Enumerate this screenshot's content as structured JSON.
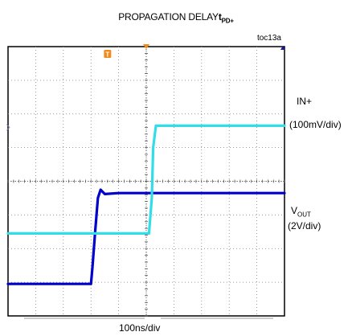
{
  "title": {
    "main": "PROPAGATION DELAY",
    "symbol": "t",
    "subscript": "PD+"
  },
  "figure_id": "toc13a",
  "labels": {
    "in_plus": {
      "name": "IN+",
      "scale": "(100mV/div)"
    },
    "vout": {
      "name": "V",
      "subscript": "OUT",
      "scale": "(2V/div)"
    },
    "time_base": "100ns/div"
  },
  "colors": {
    "background": "#ffffff",
    "grid": "#808080",
    "in_plus_trace": "#0000cc",
    "vout_trace": "#33dde8",
    "trigger_marker": "#f08a1c",
    "ground_marker": "#1a1a9a"
  },
  "chart_data": {
    "type": "line",
    "x_divisions": 10,
    "y_divisions": 8,
    "x": [
      0,
      1.5,
      3.0,
      3.05,
      3.15,
      3.25,
      3.35,
      3.5,
      4.0,
      5.0,
      10.0
    ],
    "series": [
      {
        "name": "IN+",
        "screen": "upper",
        "values": [
          0.95,
          0.95,
          0.95,
          1.4,
          2.5,
          3.5,
          3.75,
          3.62,
          3.65,
          3.65,
          3.65
        ]
      },
      {
        "name": "VOUT",
        "x": [
          0,
          2.5,
          5.1,
          5.2,
          5.25,
          5.35,
          6.0,
          10.0
        ],
        "screen": "lower",
        "values": [
          2.45,
          2.45,
          2.45,
          3.5,
          5.0,
          5.65,
          5.65,
          5.65
        ]
      }
    ],
    "trigger_marker": "T",
    "grid": true
  }
}
